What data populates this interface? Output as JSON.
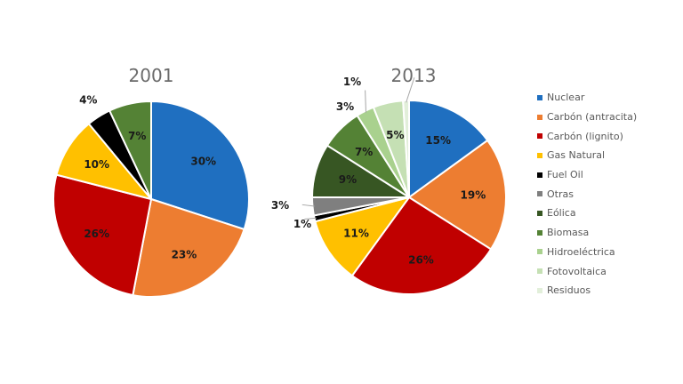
{
  "chart_data": [
    {
      "type": "pie",
      "title": "2001",
      "categories": [
        "Nuclear",
        "Carbón (antracita)",
        "Carbón (lignito)",
        "Gas Natural",
        "Fuel Oil",
        "Biomasa"
      ],
      "values": [
        30,
        23,
        26,
        10,
        4,
        7
      ],
      "labels": [
        "30%",
        "23%",
        "26%",
        "10%",
        "4%",
        "7%"
      ],
      "colors": [
        "#1f6fc0",
        "#ed7d31",
        "#c00000",
        "#ffc000",
        "#000000",
        "#548235"
      ]
    },
    {
      "type": "pie",
      "title": "2013",
      "categories": [
        "Nuclear",
        "Carbón (antracita)",
        "Carbón (lignito)",
        "Gas Natural",
        "Fuel Oil",
        "Otras",
        "Eólica",
        "Biomasa",
        "Hidroeléctrica",
        "Fotovoltaica",
        "Residuos"
      ],
      "values": [
        15,
        19,
        26,
        11,
        1,
        3,
        9,
        7,
        3,
        5,
        1
      ],
      "labels": [
        "15%",
        "19%",
        "26%",
        "11%",
        "1%",
        "3%",
        "9%",
        "7%",
        "3%",
        "5%",
        "1%"
      ],
      "colors": [
        "#1f6fc0",
        "#ed7d31",
        "#c00000",
        "#ffc000",
        "#000000",
        "#7f7f7f",
        "#375623",
        "#548235",
        "#a9d18e",
        "#c5e0b4",
        "#e2efda"
      ]
    }
  ],
  "legend": {
    "placement": "right",
    "items": [
      {
        "label": "Nuclear",
        "color": "#1f6fc0"
      },
      {
        "label": "Carbón (antracita)",
        "color": "#ed7d31"
      },
      {
        "label": "Carbón (lignito)",
        "color": "#c00000"
      },
      {
        "label": "Gas Natural",
        "color": "#ffc000"
      },
      {
        "label": "Fuel Oil",
        "color": "#000000"
      },
      {
        "label": "Otras",
        "color": "#7f7f7f"
      },
      {
        "label": "Eólica",
        "color": "#375623"
      },
      {
        "label": "Biomasa",
        "color": "#548235"
      },
      {
        "label": "Hidroeléctrica",
        "color": "#a9d18e"
      },
      {
        "label": "Fotovoltaica",
        "color": "#c5e0b4"
      },
      {
        "label": "Residuos",
        "color": "#e2efda"
      }
    ]
  }
}
